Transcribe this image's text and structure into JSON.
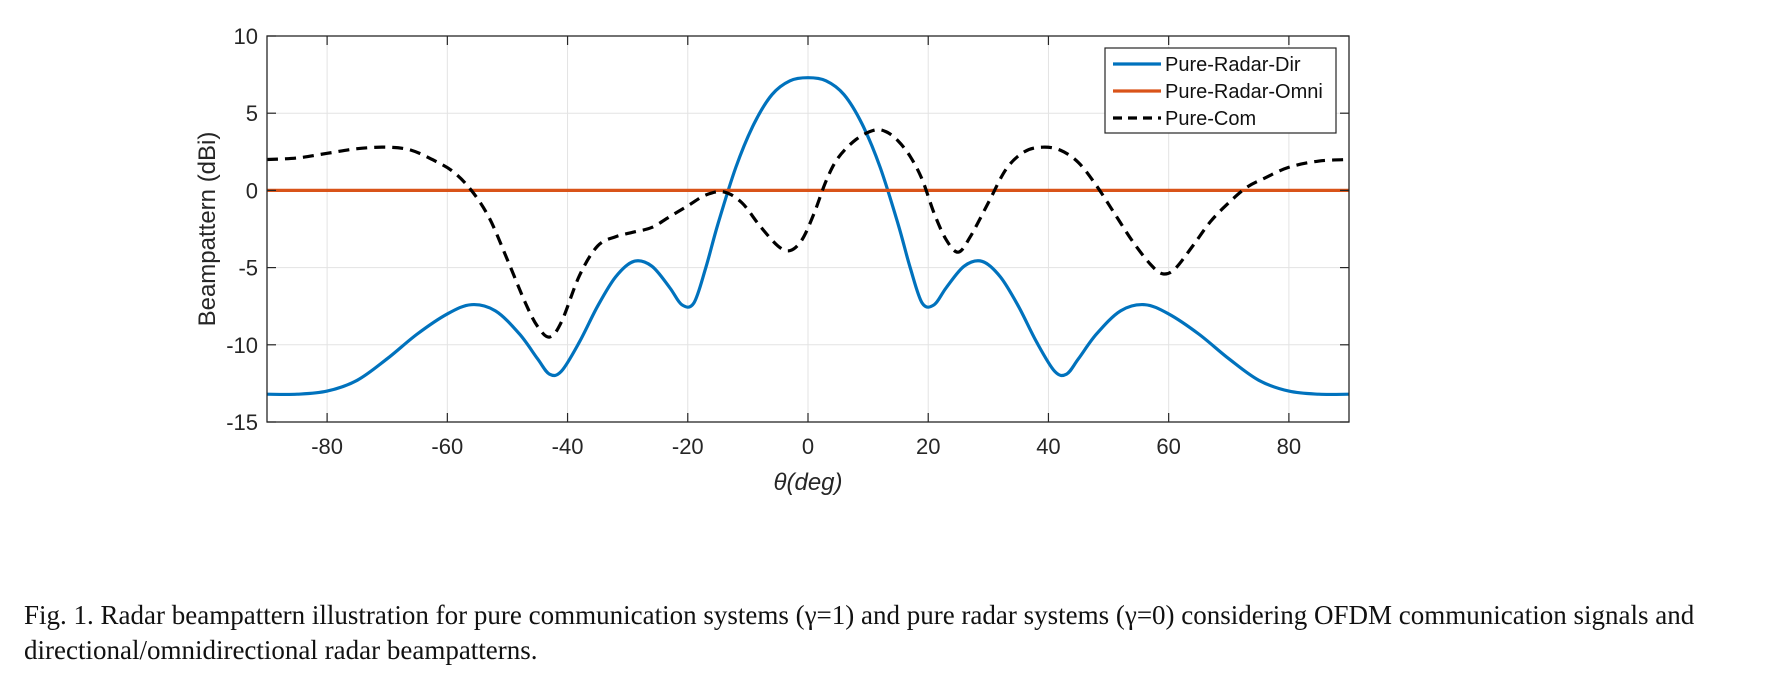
{
  "chart_data": {
    "type": "line",
    "xlabel": "θ(deg)",
    "ylabel": "Beampattern (dBi)",
    "xlim": [
      -90,
      90
    ],
    "ylim": [
      -15,
      10
    ],
    "xticks": [
      -80,
      -60,
      -40,
      -20,
      0,
      20,
      40,
      60,
      80
    ],
    "yticks": [
      10,
      5,
      0,
      -5,
      -10,
      -15
    ],
    "grid": true,
    "legend_position": "top-right",
    "series": [
      {
        "name": "Pure-Radar-Dir",
        "color": "#0072BD",
        "style": "solid",
        "x": [
          -90,
          -85,
          -80,
          -75,
          -70,
          -65,
          -60,
          -56,
          -52,
          -48,
          -45,
          -43,
          -41,
          -38,
          -35,
          -32,
          -29,
          -26,
          -23,
          -21,
          -19,
          -17,
          -15,
          -12,
          -9,
          -6,
          -3,
          0,
          3,
          6,
          9,
          12,
          15,
          17,
          19,
          21,
          23,
          26,
          29,
          32,
          35,
          38,
          41,
          43,
          45,
          48,
          52,
          56,
          60,
          65,
          70,
          75,
          80,
          85,
          90
        ],
        "y": [
          -13.2,
          -13.2,
          -13.0,
          -12.3,
          -10.9,
          -9.3,
          -8.0,
          -7.4,
          -7.8,
          -9.3,
          -10.9,
          -11.9,
          -11.7,
          -9.8,
          -7.5,
          -5.6,
          -4.6,
          -4.9,
          -6.3,
          -7.4,
          -7.3,
          -5.0,
          -2.2,
          1.5,
          4.3,
          6.2,
          7.1,
          7.3,
          7.1,
          6.2,
          4.3,
          1.5,
          -2.2,
          -5.0,
          -7.3,
          -7.4,
          -6.3,
          -4.9,
          -4.6,
          -5.6,
          -7.5,
          -9.8,
          -11.7,
          -11.9,
          -10.9,
          -9.3,
          -7.8,
          -7.4,
          -8.0,
          -9.3,
          -10.9,
          -12.3,
          -13.0,
          -13.2,
          -13.2
        ]
      },
      {
        "name": "Pure-Radar-Omni",
        "color": "#D95319",
        "style": "solid",
        "x": [
          -90,
          90
        ],
        "y": [
          0,
          0
        ]
      },
      {
        "name": "Pure-Com",
        "color": "#000000",
        "style": "dashed",
        "x": [
          -90,
          -85,
          -80,
          -75,
          -70,
          -66,
          -62,
          -59,
          -56,
          -53,
          -50,
          -47,
          -45,
          -43,
          -41,
          -38,
          -35,
          -32,
          -29,
          -26,
          -23,
          -20,
          -17,
          -14,
          -11,
          -8,
          -5,
          -3,
          -1,
          1,
          3,
          5,
          8,
          11,
          13,
          15,
          17,
          19,
          21,
          23,
          25,
          27,
          30,
          33,
          36,
          39,
          42,
          45,
          48,
          51,
          54,
          57,
          59,
          61,
          64,
          67,
          70,
          73,
          76,
          80,
          85,
          90
        ],
        "y": [
          2.0,
          2.1,
          2.4,
          2.7,
          2.8,
          2.6,
          1.9,
          1.2,
          0.0,
          -1.8,
          -4.5,
          -7.3,
          -8.8,
          -9.5,
          -8.5,
          -5.5,
          -3.6,
          -3.0,
          -2.7,
          -2.4,
          -1.7,
          -1.0,
          -0.3,
          -0.1,
          -0.8,
          -2.3,
          -3.6,
          -3.9,
          -3.2,
          -1.5,
          0.6,
          2.1,
          3.3,
          3.9,
          3.8,
          3.2,
          2.2,
          0.7,
          -1.5,
          -3.2,
          -4.0,
          -3.0,
          -0.8,
          1.4,
          2.5,
          2.8,
          2.6,
          1.8,
          0.3,
          -1.5,
          -3.3,
          -4.8,
          -5.4,
          -5.1,
          -3.6,
          -2.0,
          -0.8,
          0.2,
          0.8,
          1.5,
          1.9,
          2.0
        ]
      }
    ]
  },
  "caption": {
    "text": "Fig. 1. Radar beampattern illustration for pure communication systems (γ=1) and pure radar systems (γ=0) considering OFDM communication signals and directional/omnidirectional radar beampatterns."
  }
}
